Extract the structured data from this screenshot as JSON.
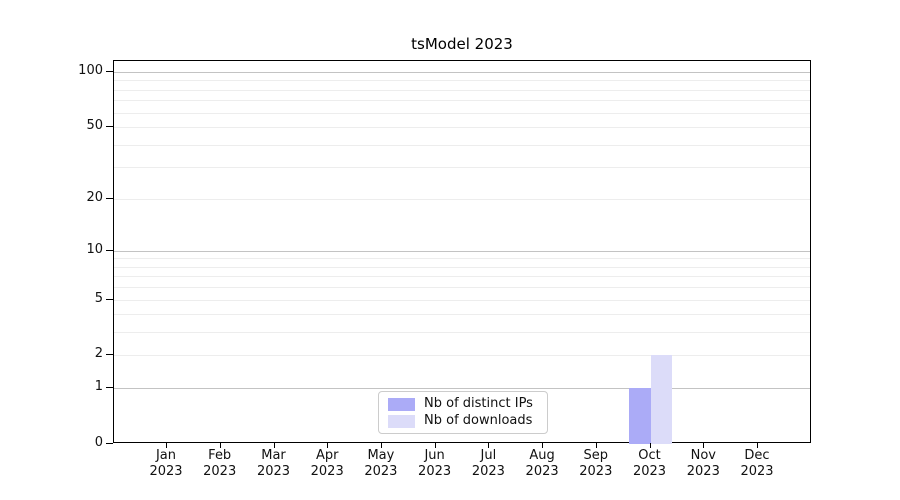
{
  "chart_data": {
    "type": "bar",
    "title": "tsModel 2023",
    "year": "2023",
    "categories": [
      "Jan",
      "Feb",
      "Mar",
      "Apr",
      "May",
      "Jun",
      "Jul",
      "Aug",
      "Sep",
      "Oct",
      "Nov",
      "Dec"
    ],
    "series": [
      {
        "name": "Nb of distinct IPs",
        "color": "#ababf7",
        "values": [
          0,
          0,
          0,
          0,
          0,
          0,
          0,
          0,
          0,
          1,
          0,
          0
        ]
      },
      {
        "name": "Nb of downloads",
        "color": "#dcdcf9",
        "values": [
          0,
          0,
          0,
          0,
          0,
          0,
          0,
          0,
          0,
          2,
          0,
          0
        ]
      }
    ],
    "y_axis": {
      "scale": "log1p",
      "ticks": [
        0,
        1,
        2,
        5,
        10,
        20,
        50,
        100
      ],
      "range_top": 115,
      "gridlines_major": [
        1,
        10,
        100
      ],
      "gridlines_minor": [
        2,
        3,
        4,
        5,
        6,
        7,
        8,
        9,
        20,
        30,
        40,
        50,
        60,
        70,
        80,
        90
      ]
    },
    "x_axis": {
      "label_lines": 2
    },
    "legend": {
      "position": "inside-bottom-center"
    }
  }
}
